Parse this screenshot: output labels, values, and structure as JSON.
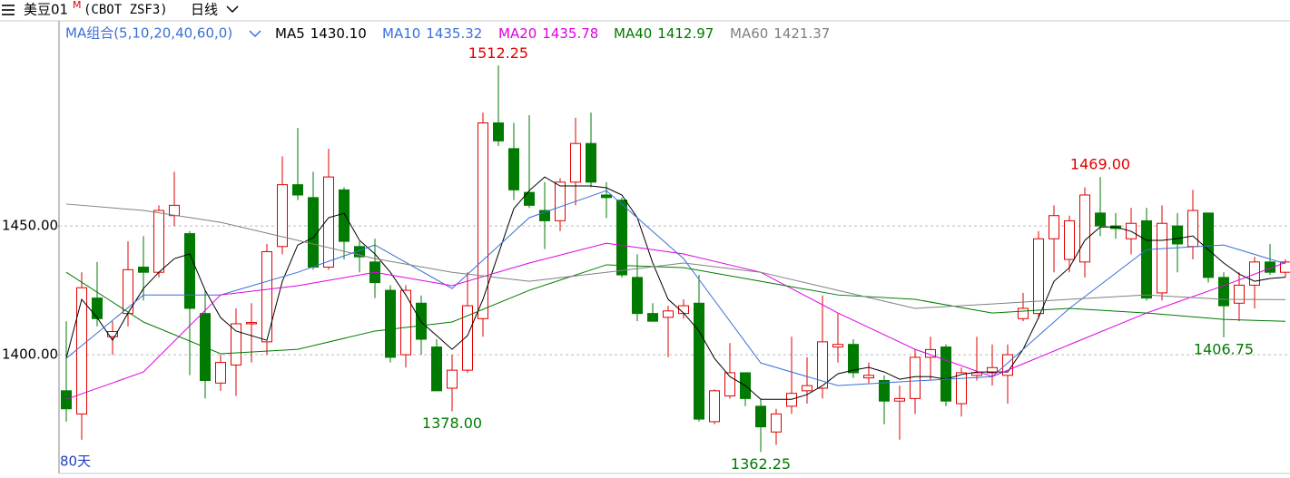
{
  "chart_data": {
    "type": "candlestick",
    "title": "美豆01",
    "title_mark": "M",
    "subtitle": "(CBOT ZSF3)",
    "period": "日线",
    "indicator": "MA组合(5,10,20,40,60,0)",
    "range_label": "80天",
    "up_color": "#e00000",
    "down_color": "#007a00",
    "ylim": [
      1353.9,
      1528.9
    ],
    "yticks": [
      {
        "value": 1400,
        "label": "1400.00"
      },
      {
        "value": 1450,
        "label": "1450.00"
      }
    ],
    "grid": true,
    "candles": {
      "open": [
        1386,
        1377,
        1422,
        1407,
        1416,
        1434,
        1432,
        1454,
        1447,
        1416,
        1389,
        1396,
        1412,
        1405,
        1442,
        1466,
        1461,
        1434,
        1464,
        1442,
        1436,
        1425,
        1400,
        1420,
        1403,
        1387,
        1394,
        1414,
        1490,
        1480,
        1463,
        1456,
        1452,
        1467,
        1482,
        1462,
        1460,
        1430,
        1416,
        1414.5,
        1416,
        1420,
        1374,
        1384,
        1393,
        1380,
        1370,
        1380,
        1386,
        1387,
        1403,
        1404,
        1391,
        1390,
        1382,
        1383,
        1399,
        1403,
        1381,
        1392,
        1393,
        1392,
        1414,
        1416,
        1445,
        1437,
        1436,
        1455,
        1450,
        1445,
        1452,
        1424,
        1450,
        1442,
        1455,
        1430,
        1420,
        1427,
        1436,
        1432
      ],
      "high": [
        1413,
        1432,
        1436,
        1413,
        1444,
        1446,
        1458,
        1471,
        1448,
        1425,
        1400,
        1418,
        1420,
        1443,
        1477,
        1488,
        1471,
        1480,
        1465,
        1444,
        1445,
        1427,
        1427,
        1423,
        1406,
        1400,
        1432,
        1494,
        1512.25,
        1490,
        1493,
        1467,
        1468.5,
        1492,
        1494,
        1467,
        1461,
        1439,
        1420,
        1419,
        1421.5,
        1431,
        1386.5,
        1404.5,
        1393,
        1383,
        1379,
        1407,
        1399,
        1423,
        1416,
        1406,
        1397,
        1392,
        1388,
        1402,
        1407,
        1404,
        1395,
        1407,
        1404,
        1404,
        1424,
        1448,
        1458,
        1454,
        1465,
        1469,
        1455,
        1457,
        1457,
        1458,
        1455,
        1464,
        1455,
        1432,
        1432,
        1438,
        1443,
        1437
      ],
      "low": [
        1374,
        1367,
        1411,
        1400,
        1411,
        1421,
        1430,
        1450,
        1392,
        1383,
        1386,
        1384,
        1397,
        1400,
        1439,
        1460,
        1433,
        1433,
        1437,
        1432,
        1422,
        1397,
        1395,
        1400,
        1386,
        1378,
        1393,
        1407,
        1481,
        1460,
        1457,
        1441,
        1448,
        1458,
        1465,
        1453,
        1430,
        1413,
        1413,
        1399,
        1414,
        1374,
        1373,
        1383,
        1380,
        1362.25,
        1365,
        1377,
        1381,
        1383,
        1397,
        1391,
        1389,
        1373,
        1367,
        1377,
        1390,
        1380,
        1376,
        1390,
        1388,
        1381,
        1413,
        1414,
        1432,
        1432,
        1430,
        1446,
        1445,
        1439,
        1421,
        1421,
        1432,
        1437,
        1428,
        1406.75,
        1413,
        1418,
        1431,
        1430
      ],
      "close": [
        1379,
        1426,
        1414,
        1409,
        1433,
        1432,
        1456,
        1458,
        1418,
        1390,
        1397,
        1412,
        1412.5,
        1440,
        1466,
        1462,
        1434,
        1469,
        1444,
        1438,
        1428,
        1399,
        1425,
        1406,
        1386,
        1394,
        1419,
        1490,
        1483,
        1464,
        1458,
        1452,
        1467,
        1482,
        1467,
        1461,
        1431,
        1416,
        1413,
        1417,
        1419,
        1375,
        1386,
        1393,
        1383,
        1372,
        1377,
        1385,
        1388,
        1405,
        1404,
        1393,
        1392,
        1382,
        1383,
        1399,
        1402,
        1382,
        1393,
        1393,
        1395,
        1400,
        1418,
        1445,
        1454,
        1452,
        1462,
        1450,
        1449,
        1451,
        1422,
        1451,
        1443,
        1456,
        1430,
        1419,
        1427,
        1436,
        1432,
        1436
      ]
    },
    "series": [
      {
        "name": "MA5",
        "color": "#000000",
        "values": [
          1398.6,
          1421.5,
          1414.4,
          1405.6,
          1416.2,
          1425.7,
          1432.0,
          1437.3,
          1439.1,
          1425.0,
          1414.4,
          1409.2,
          1407.4,
          1405.6,
          1428.5,
          1442.6,
          1445.4,
          1453.2,
          1454.9,
          1444.4,
          1439.1,
          1432.0,
          1423.2,
          1412.7,
          1407.4,
          1402.1,
          1407.4,
          1421.5,
          1439.1,
          1456.7,
          1463.7,
          1469.0,
          1465.5,
          1465.5,
          1465.5,
          1464.8,
          1462.0,
          1453.2,
          1435.6,
          1421.5,
          1416.2,
          1409.2,
          1398.6,
          1391.5,
          1388.0,
          1382.7,
          1382.7,
          1382.7,
          1384.5,
          1388.0,
          1392.6,
          1394.0,
          1395.1,
          1393.3,
          1390.5,
          1391.5,
          1391.5,
          1390.5,
          1392.3,
          1393.3,
          1393.3,
          1393.3,
          1402.1,
          1414.4,
          1428.5,
          1433.8,
          1444.4,
          1449.6,
          1449.6,
          1447.9,
          1444.4,
          1444.4,
          1445.1,
          1446.1,
          1440.8,
          1435.6,
          1431.3,
          1428.5,
          1429.6,
          1430.1
        ],
        "value_labels": [
          null,
          null,
          null,
          null,
          null,
          null,
          null,
          null,
          null,
          null,
          null,
          null,
          null,
          null,
          null,
          null,
          null,
          null,
          null,
          null,
          null,
          null,
          null,
          null,
          null,
          null,
          null,
          null,
          null,
          null,
          null,
          null,
          null,
          null,
          null,
          null,
          null,
          null,
          null,
          null,
          null,
          null,
          null,
          null,
          null,
          null,
          null,
          null,
          null,
          null,
          null,
          null,
          null,
          null,
          null,
          null,
          null,
          null,
          null,
          null,
          null,
          null,
          null,
          null,
          null,
          null,
          null,
          null,
          null,
          null,
          null,
          null,
          null,
          null,
          null,
          null,
          null,
          null,
          null,
          "1430.10"
        ]
      },
      {
        "name": "MA10",
        "color": "#3a6fd8",
        "x": [
          0,
          5,
          10,
          15,
          20,
          25,
          30,
          35,
          40,
          45,
          50,
          55,
          60,
          65,
          70,
          75,
          79
        ],
        "values": [
          1398.6,
          1423.2,
          1423.2,
          1432.0,
          1442.6,
          1425.7,
          1453.2,
          1463.7,
          1437.3,
          1396.8,
          1388.0,
          1389.8,
          1391.5,
          1418.0,
          1440.8,
          1442.6,
          1435.32
        ],
        "value_labels": [
          null,
          null,
          null,
          null,
          null,
          null,
          null,
          null,
          null,
          null,
          null,
          null,
          null,
          null,
          null,
          null,
          "1435.32"
        ]
      },
      {
        "name": "MA20",
        "color": "#e000e0",
        "x": [
          0,
          5,
          10,
          15,
          20,
          25,
          30,
          35,
          40,
          45,
          50,
          55,
          60,
          65,
          70,
          75,
          79
        ],
        "values": [
          1382.7,
          1393.3,
          1423.2,
          1426.8,
          1432.0,
          1426.8,
          1435.6,
          1443.3,
          1439.1,
          1432.0,
          1416.2,
          1402.1,
          1391.5,
          1403.9,
          1416.2,
          1426.8,
          1435.78
        ],
        "value_labels": [
          null,
          null,
          null,
          null,
          null,
          null,
          null,
          null,
          null,
          null,
          null,
          null,
          null,
          null,
          null,
          null,
          "1435.78"
        ]
      },
      {
        "name": "MA40",
        "color": "#007a00",
        "x": [
          0,
          5,
          10,
          15,
          20,
          25,
          30,
          35,
          40,
          45,
          50,
          55,
          60,
          65,
          70,
          75,
          79
        ],
        "values": [
          1432.0,
          1412.7,
          1400.4,
          1402.1,
          1409.2,
          1412.7,
          1425.0,
          1434.9,
          1433.8,
          1428.5,
          1423.2,
          1421.5,
          1416.2,
          1418.0,
          1416.2,
          1413.7,
          1412.97
        ],
        "value_labels": [
          null,
          null,
          null,
          null,
          null,
          null,
          null,
          null,
          null,
          null,
          null,
          null,
          null,
          null,
          null,
          null,
          "1412.97"
        ]
      },
      {
        "name": "MA60",
        "color": "#808080",
        "x": [
          0,
          5,
          10,
          15,
          20,
          25,
          30,
          35,
          40,
          45,
          50,
          55,
          60,
          65,
          70,
          75,
          79
        ],
        "values": [
          1458.5,
          1456.0,
          1451.4,
          1444.4,
          1437.3,
          1432.0,
          1428.5,
          1432.0,
          1435.6,
          1432.0,
          1425.0,
          1418.0,
          1419.7,
          1421.5,
          1423.2,
          1421.5,
          1421.37
        ],
        "value_labels": [
          null,
          null,
          null,
          null,
          null,
          null,
          null,
          null,
          null,
          null,
          null,
          null,
          null,
          null,
          null,
          null,
          "1421.37"
        ]
      }
    ],
    "annotations": [
      "1512.25",
      "1469.00",
      "1378.00",
      "1362.25",
      "1406.75"
    ]
  }
}
